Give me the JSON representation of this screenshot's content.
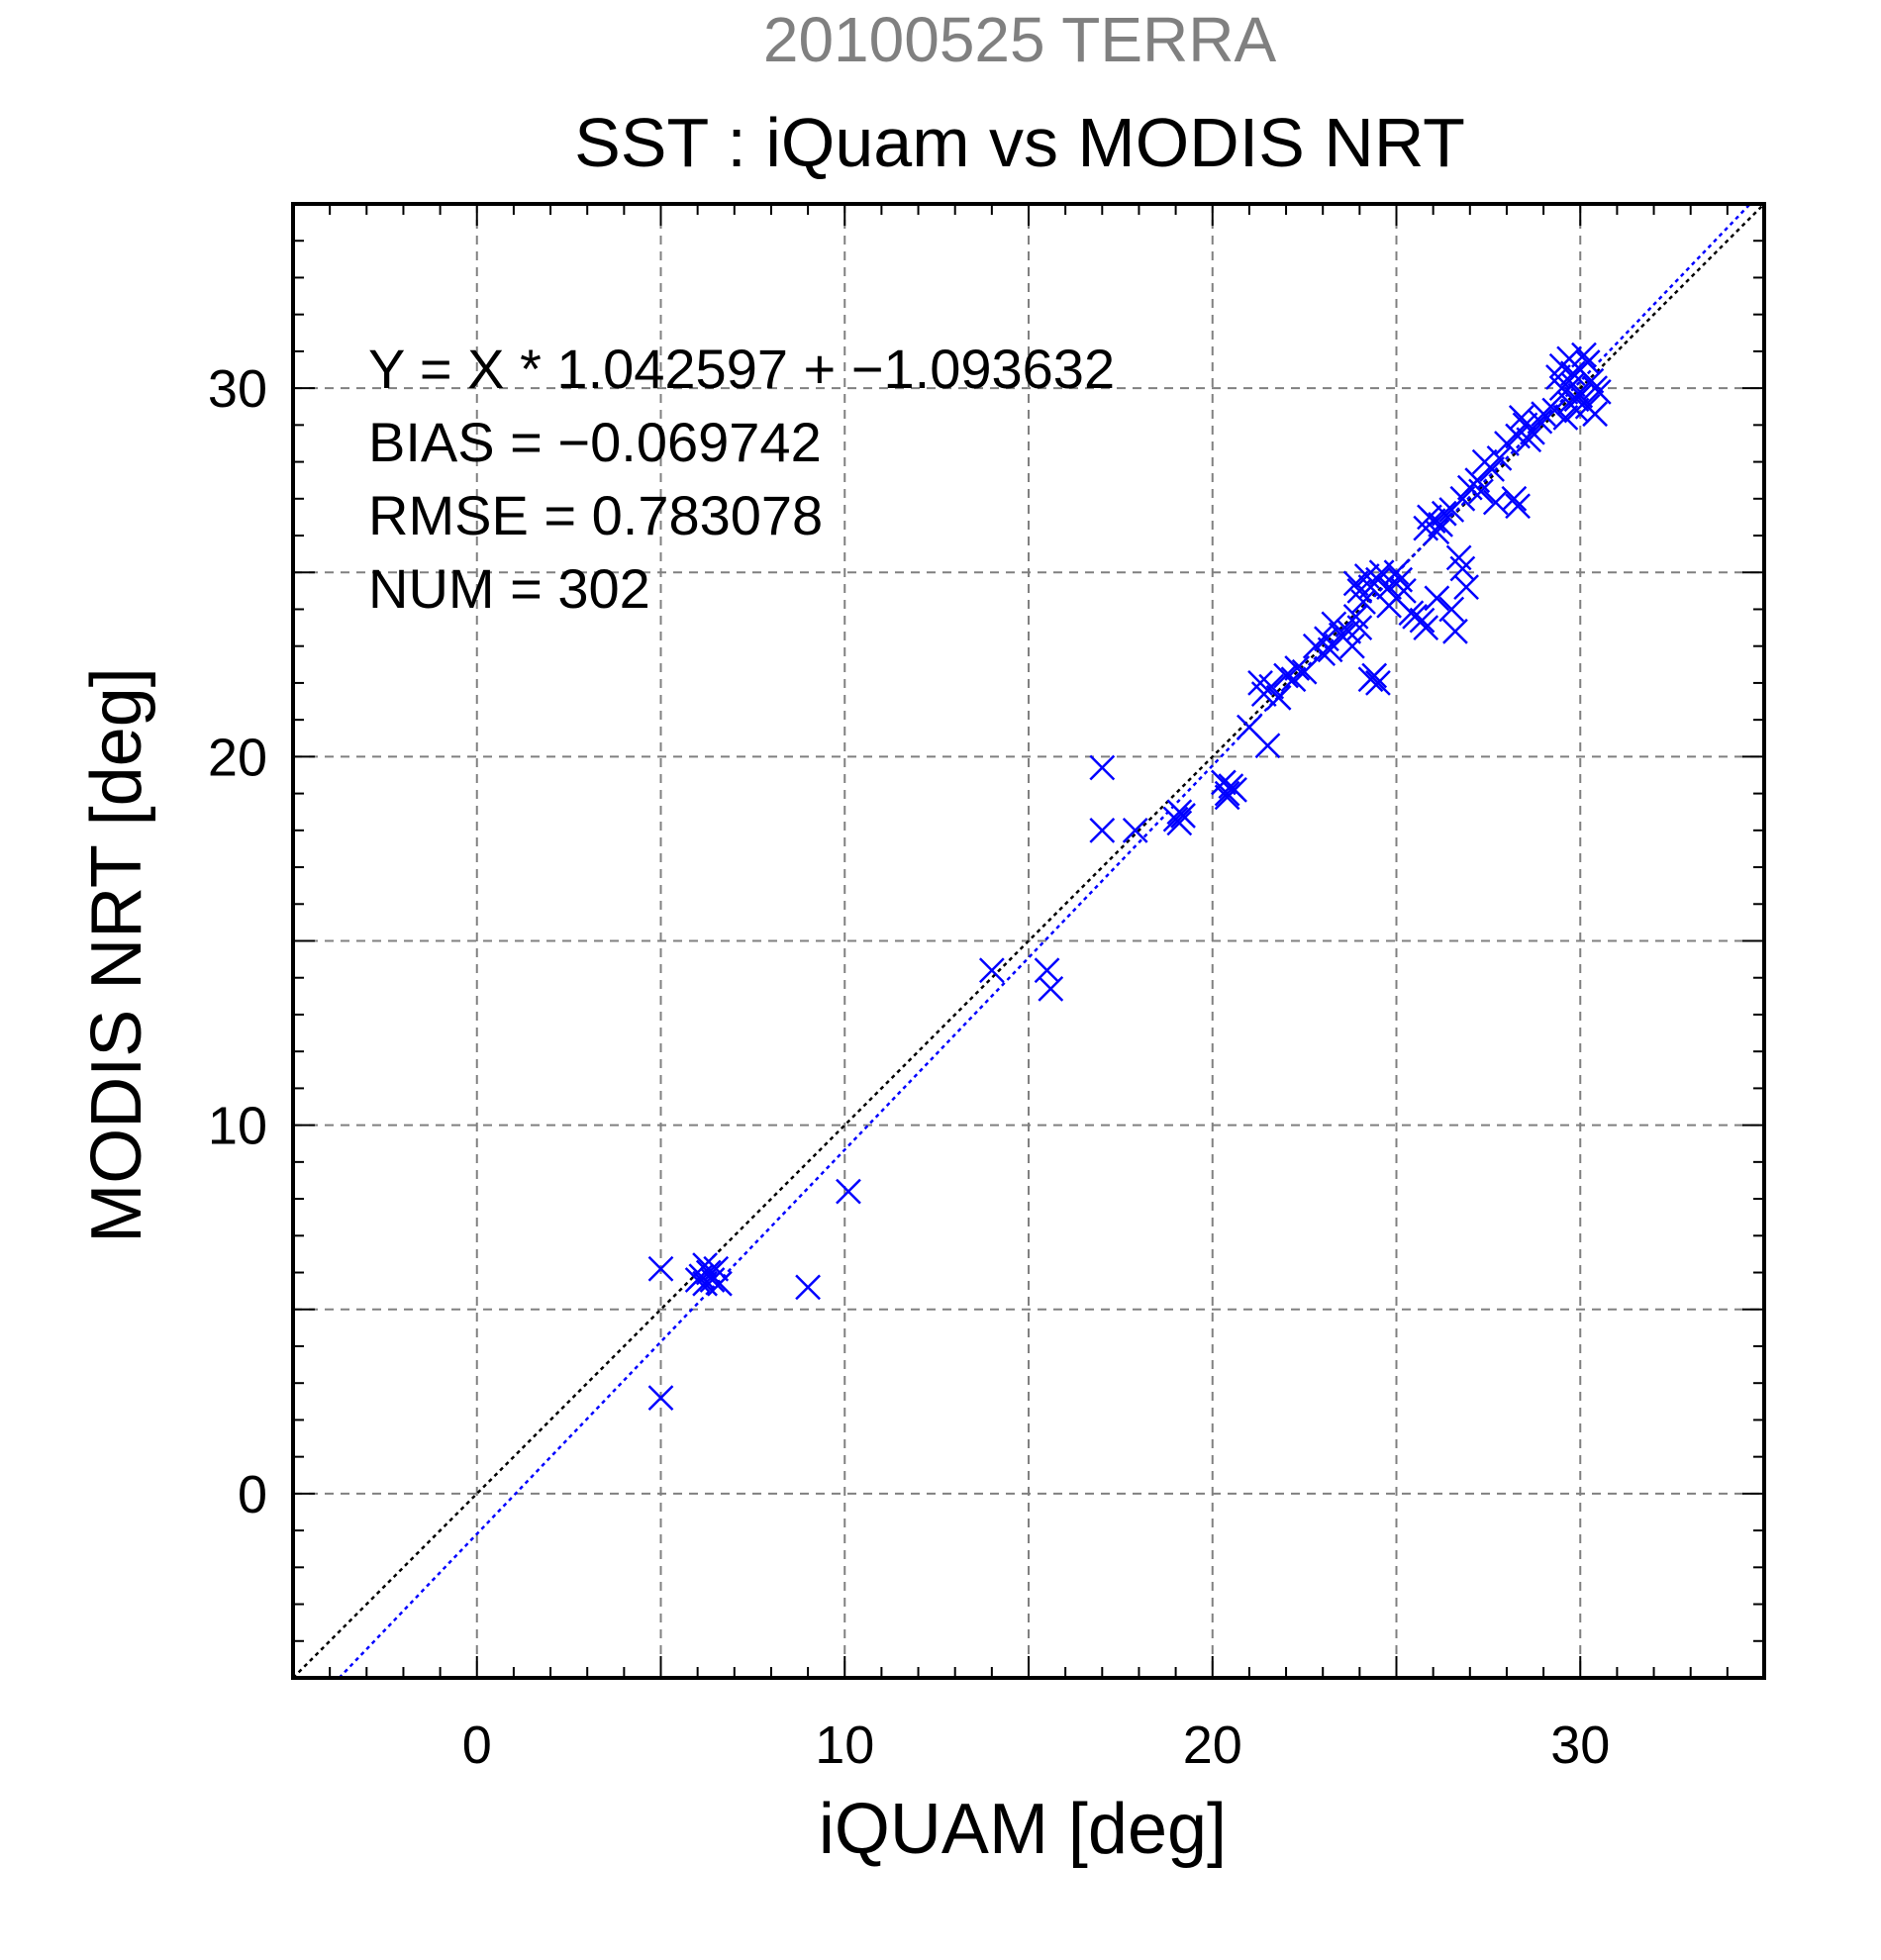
{
  "chart_data": {
    "type": "scatter",
    "title": "20100525 TERRA",
    "subtitle": "SST : iQuam vs MODIS NRT",
    "xlabel": "iQUAM [deg]",
    "ylabel": "MODIS NRT [deg]",
    "xlim": [
      -5,
      35
    ],
    "ylim": [
      -5,
      35
    ],
    "xticks": [
      0,
      10,
      20,
      30
    ],
    "yticks": [
      0,
      10,
      20,
      30
    ],
    "xtick_labels": [
      "0",
      "10",
      "20",
      "30"
    ],
    "ytick_labels": [
      "0",
      "10",
      "20",
      "30"
    ],
    "grid": true,
    "annotations": [
      "Y = X * 1.042597 + −1.093632",
      "BIAS = −0.069742",
      "RMSE = 0.783078",
      "NUM = 302"
    ],
    "series": [
      {
        "marker": "x",
        "color": "#0000ff",
        "points": [
          [
            5.0,
            6.1
          ],
          [
            5.0,
            2.6
          ],
          [
            6.0,
            5.8
          ],
          [
            6.1,
            5.9
          ],
          [
            6.2,
            5.7
          ],
          [
            6.3,
            6.0
          ],
          [
            6.4,
            5.8
          ],
          [
            6.5,
            6.1
          ],
          [
            6.6,
            5.7
          ],
          [
            6.2,
            6.2
          ],
          [
            9.0,
            5.6
          ],
          [
            10.1,
            8.2
          ],
          [
            14.0,
            14.2
          ],
          [
            15.5,
            14.2
          ],
          [
            15.6,
            13.7
          ],
          [
            17.0,
            19.7
          ],
          [
            17.0,
            18.0
          ],
          [
            17.9,
            18.0
          ],
          [
            19.1,
            18.5
          ],
          [
            19.1,
            18.2
          ],
          [
            19.2,
            18.4
          ],
          [
            19.0,
            18.3
          ],
          [
            20.3,
            19.3
          ],
          [
            20.4,
            19.0
          ],
          [
            20.5,
            19.2
          ],
          [
            20.6,
            19.1
          ],
          [
            20.4,
            18.9
          ],
          [
            21.0,
            20.8
          ],
          [
            21.5,
            20.3
          ],
          [
            21.4,
            21.7
          ],
          [
            21.3,
            22.0
          ],
          [
            21.8,
            21.6
          ],
          [
            21.6,
            21.9
          ],
          [
            22.0,
            22.2
          ],
          [
            22.3,
            22.4
          ],
          [
            22.2,
            22.1
          ],
          [
            22.5,
            22.3
          ],
          [
            22.8,
            23.0
          ],
          [
            23.0,
            22.8
          ],
          [
            23.1,
            23.2
          ],
          [
            23.2,
            22.9
          ],
          [
            23.5,
            23.3
          ],
          [
            23.3,
            23.6
          ],
          [
            23.7,
            23.4
          ],
          [
            23.8,
            23.0
          ],
          [
            23.9,
            23.8
          ],
          [
            24.0,
            23.5
          ],
          [
            24.1,
            24.2
          ],
          [
            24.3,
            24.6
          ],
          [
            24.2,
            24.9
          ],
          [
            24.5,
            24.8
          ],
          [
            24.6,
            25.0
          ],
          [
            24.0,
            24.5
          ],
          [
            23.9,
            24.7
          ],
          [
            24.8,
            24.6
          ],
          [
            25.0,
            25.0
          ],
          [
            25.1,
            24.8
          ],
          [
            24.4,
            22.2
          ],
          [
            24.3,
            22.1
          ],
          [
            24.5,
            22.0
          ],
          [
            25.5,
            23.8
          ],
          [
            25.7,
            23.7
          ],
          [
            25.4,
            23.9
          ],
          [
            25.0,
            24.3
          ],
          [
            25.2,
            24.5
          ],
          [
            24.8,
            24.1
          ],
          [
            25.8,
            23.5
          ],
          [
            26.1,
            24.3
          ],
          [
            26.5,
            24.0
          ],
          [
            26.6,
            23.4
          ],
          [
            26.8,
            25.1
          ],
          [
            26.9,
            24.6
          ],
          [
            26.7,
            25.4
          ],
          [
            25.8,
            26.2
          ],
          [
            25.9,
            26.5
          ],
          [
            26.0,
            26.4
          ],
          [
            26.2,
            26.3
          ],
          [
            26.1,
            26.1
          ],
          [
            26.3,
            26.6
          ],
          [
            26.5,
            26.7
          ],
          [
            26.8,
            27.0
          ],
          [
            27.0,
            27.3
          ],
          [
            27.2,
            27.5
          ],
          [
            27.4,
            28.0
          ],
          [
            27.6,
            27.8
          ],
          [
            27.8,
            28.1
          ],
          [
            27.3,
            27.2
          ],
          [
            27.7,
            26.9
          ],
          [
            28.2,
            27.0
          ],
          [
            28.3,
            26.8
          ],
          [
            28.0,
            28.5
          ],
          [
            28.3,
            28.7
          ],
          [
            28.5,
            29.0
          ],
          [
            28.7,
            28.8
          ],
          [
            28.9,
            29.1
          ],
          [
            28.4,
            29.2
          ],
          [
            28.6,
            28.6
          ],
          [
            29.0,
            29.3
          ],
          [
            29.4,
            30.3
          ],
          [
            29.5,
            30.6
          ],
          [
            29.6,
            29.9
          ],
          [
            29.7,
            30.8
          ],
          [
            29.8,
            30.1
          ],
          [
            29.9,
            29.7
          ],
          [
            30.0,
            30.5
          ],
          [
            30.1,
            30.9
          ],
          [
            30.2,
            29.5
          ],
          [
            30.3,
            30.2
          ],
          [
            30.4,
            29.3
          ],
          [
            30.5,
            29.9
          ],
          [
            29.3,
            29.4
          ],
          [
            29.6,
            29.2
          ],
          [
            29.8,
            30.4
          ],
          [
            30.0,
            29.8
          ],
          [
            29.5,
            30.0
          ],
          [
            30.2,
            30.7
          ],
          [
            29.9,
            29.4
          ],
          [
            30.4,
            30.0
          ],
          [
            29.7,
            29.6
          ]
        ]
      }
    ],
    "lines": [
      {
        "kind": "identity",
        "slope": 1,
        "intercept": 0,
        "color": "#000000",
        "style": "dotted"
      },
      {
        "kind": "regression",
        "slope": 1.042597,
        "intercept": -1.093632,
        "color": "#0000ff",
        "style": "dotted"
      }
    ]
  }
}
